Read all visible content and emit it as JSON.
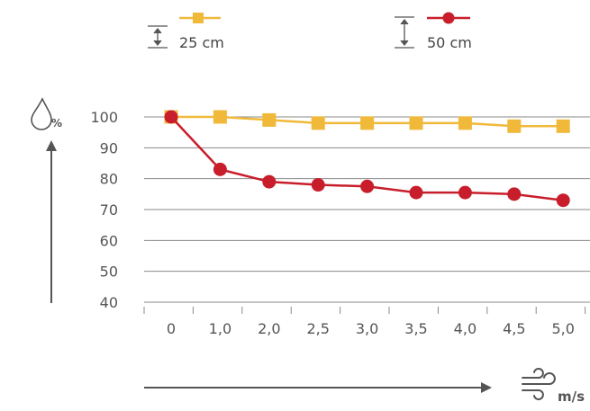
{
  "chart_data": {
    "type": "line",
    "y_unit": "%",
    "x_unit": "m/s",
    "categories": [
      "0",
      "1,0",
      "2,0",
      "2,5",
      "3,0",
      "3,5",
      "4,0",
      "4,5",
      "5,0"
    ],
    "yticks": [
      100,
      90,
      80,
      70,
      60,
      50,
      40
    ],
    "ylim": [
      40,
      100
    ],
    "grid": true,
    "legend_position": "top",
    "series": [
      {
        "name": "25 cm",
        "marker": "square",
        "color": "#f0b93a",
        "values": [
          100,
          100,
          99,
          98,
          98,
          98,
          98,
          97,
          97
        ]
      },
      {
        "name": "50 cm",
        "marker": "circle",
        "color": "#c81e2c",
        "values": [
          100,
          83,
          79,
          78,
          77.5,
          75.5,
          75.5,
          75,
          73
        ]
      }
    ]
  }
}
